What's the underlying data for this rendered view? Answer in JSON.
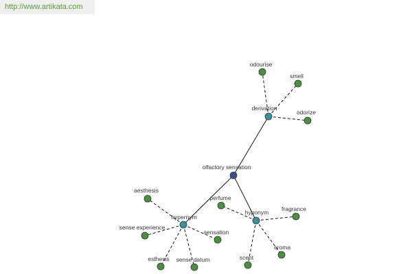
{
  "source_url": "http://www.artikata.com",
  "colors": {
    "root_fill": "#3a4f8c",
    "relation_fill": "#3f8e9a",
    "leaf_fill": "#4f8d44",
    "node_stroke": "#2b3b2b",
    "edge": "#111111"
  },
  "graph": {
    "nodes": [
      {
        "id": "olfactory-sensation",
        "label": "olfactory sensation",
        "kind": "root"
      },
      {
        "id": "derivation",
        "label": "derivation",
        "kind": "relation"
      },
      {
        "id": "hypernym",
        "label": "hypernym",
        "kind": "relation"
      },
      {
        "id": "hyponym",
        "label": "hyponym",
        "kind": "relation"
      },
      {
        "id": "odourise",
        "label": "odourise",
        "kind": "leaf"
      },
      {
        "id": "smell",
        "label": "smell",
        "kind": "leaf"
      },
      {
        "id": "odorize",
        "label": "odorize",
        "kind": "leaf"
      },
      {
        "id": "aesthesis",
        "label": "aesthesis",
        "kind": "leaf"
      },
      {
        "id": "sense-experience",
        "label": "sense experience",
        "kind": "leaf"
      },
      {
        "id": "esthesis",
        "label": "esthesis",
        "kind": "leaf"
      },
      {
        "id": "sense-datum",
        "label": "sense datum",
        "kind": "leaf"
      },
      {
        "id": "sensation",
        "label": "sensation",
        "kind": "leaf"
      },
      {
        "id": "perfume",
        "label": "perfume",
        "kind": "leaf"
      },
      {
        "id": "fragrance",
        "label": "fragrance",
        "kind": "leaf"
      },
      {
        "id": "aroma",
        "label": "aroma",
        "kind": "leaf"
      },
      {
        "id": "scent",
        "label": "scent",
        "kind": "leaf"
      }
    ],
    "edges": [
      {
        "from": "olfactory-sensation",
        "to": "derivation",
        "style": "solid"
      },
      {
        "from": "olfactory-sensation",
        "to": "hypernym",
        "style": "solid"
      },
      {
        "from": "olfactory-sensation",
        "to": "hyponym",
        "style": "solid"
      },
      {
        "from": "derivation",
        "to": "odourise",
        "style": "dashed"
      },
      {
        "from": "derivation",
        "to": "smell",
        "style": "dashed"
      },
      {
        "from": "derivation",
        "to": "odorize",
        "style": "dashed"
      },
      {
        "from": "hypernym",
        "to": "aesthesis",
        "style": "dashed"
      },
      {
        "from": "hypernym",
        "to": "sense-experience",
        "style": "dashed"
      },
      {
        "from": "hypernym",
        "to": "esthesis",
        "style": "dashed"
      },
      {
        "from": "hypernym",
        "to": "sense-datum",
        "style": "dashed"
      },
      {
        "from": "hypernym",
        "to": "sensation",
        "style": "dashed"
      },
      {
        "from": "hyponym",
        "to": "perfume",
        "style": "dashed"
      },
      {
        "from": "hyponym",
        "to": "fragrance",
        "style": "dashed"
      },
      {
        "from": "hyponym",
        "to": "aroma",
        "style": "dashed"
      },
      {
        "from": "hyponym",
        "to": "scent",
        "style": "dashed"
      }
    ]
  }
}
